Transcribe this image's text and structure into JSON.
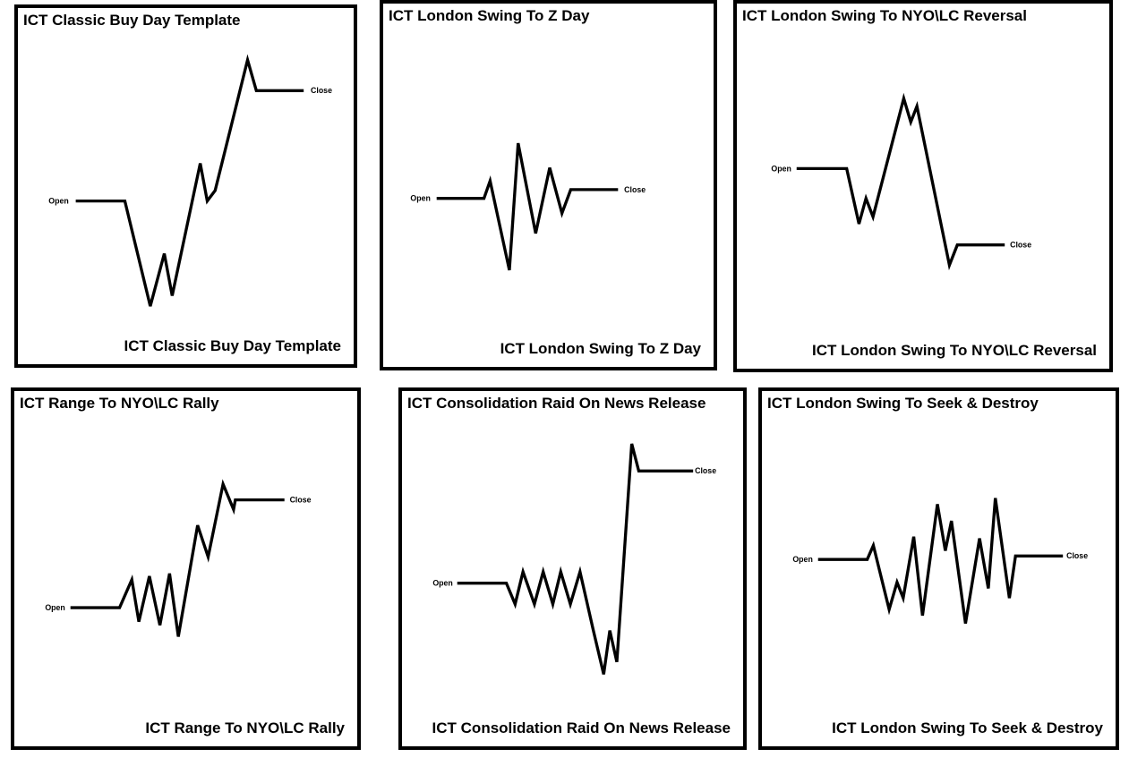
{
  "line_color": "#000000",
  "panels": [
    {
      "title": "ICT Classic Buy Day Template",
      "open_label": "Open",
      "close_label": "Close",
      "path": [
        [
          0,
          0
        ],
        [
          0.07,
          0
        ],
        [
          0.15,
          -0.32
        ],
        [
          0.19,
          -0.16
        ],
        [
          0.23,
          -0.29
        ],
        [
          0.33,
          0.11
        ],
        [
          0.36,
          0
        ],
        [
          0.39,
          0.03
        ],
        [
          0.45,
          0.42
        ],
        [
          0.49,
          0.33
        ],
        [
          0.63,
          0.33
        ]
      ]
    },
    {
      "title": "ICT London Swing To Z Day",
      "open_label": "Open",
      "close_label": "Close",
      "path": [
        [
          0,
          0
        ],
        [
          0.14,
          0
        ],
        [
          0.16,
          0.04
        ],
        [
          0.21,
          -0.19
        ],
        [
          0.24,
          0.15
        ],
        [
          0.3,
          -0.09
        ],
        [
          0.34,
          0.08
        ],
        [
          0.38,
          -0.04
        ],
        [
          0.4,
          0.02
        ],
        [
          0.54,
          0.02
        ]
      ]
    },
    {
      "title": "ICT London Swing To NYO\\LC Reversal",
      "open_label": "Open",
      "close_label": "Close",
      "path": [
        [
          0,
          0
        ],
        [
          0.14,
          0
        ],
        [
          0.16,
          -0.14
        ],
        [
          0.18,
          -0.07
        ],
        [
          0.19,
          -0.12
        ],
        [
          0.28,
          0.17
        ],
        [
          0.3,
          0.12
        ],
        [
          0.31,
          0.15
        ],
        [
          0.43,
          -0.23
        ],
        [
          0.45,
          -0.18
        ],
        [
          0.58,
          -0.18
        ]
      ]
    },
    {
      "title": "ICT Range To NYO\\LC Rally",
      "open_label": "Open",
      "close_label": "Close",
      "path": [
        [
          0,
          0
        ],
        [
          0.14,
          0
        ],
        [
          0.17,
          0.07
        ],
        [
          0.19,
          -0.04
        ],
        [
          0.22,
          0.08
        ],
        [
          0.25,
          -0.05
        ],
        [
          0.27,
          0.08
        ],
        [
          0.3,
          -0.08
        ],
        [
          0.35,
          0.21
        ],
        [
          0.39,
          0.12
        ],
        [
          0.43,
          0.28
        ],
        [
          0.46,
          0.23
        ],
        [
          0.6,
          0.23
        ]
      ]
    },
    {
      "title": "ICT Consolidation Raid On News Release",
      "open_label": "Open",
      "close_label": "Close",
      "path": [
        [
          0,
          0
        ],
        [
          0.14,
          0
        ],
        [
          0.17,
          -0.05
        ],
        [
          0.2,
          0.03
        ],
        [
          0.23,
          -0.05
        ],
        [
          0.25,
          0.03
        ],
        [
          0.28,
          -0.05
        ],
        [
          0.3,
          0.03
        ],
        [
          0.33,
          -0.05
        ],
        [
          0.35,
          0.03
        ],
        [
          0.38,
          -0.05
        ],
        [
          0.4,
          0.03
        ],
        [
          0.46,
          -0.23
        ],
        [
          0.48,
          -0.13
        ],
        [
          0.5,
          -0.19
        ],
        [
          0.54,
          0.39
        ],
        [
          0.57,
          0.31
        ],
        [
          0.7,
          0.31
        ]
      ]
    },
    {
      "title": "ICT London Swing To Seek & Destroy",
      "open_label": "Open",
      "close_label": "Close",
      "path": [
        [
          0,
          0
        ],
        [
          0.13,
          0
        ],
        [
          0.15,
          0.03
        ],
        [
          0.19,
          -0.14
        ],
        [
          0.21,
          -0.07
        ],
        [
          0.23,
          -0.11
        ],
        [
          0.26,
          0.06
        ],
        [
          0.29,
          -0.16
        ],
        [
          0.32,
          0.15
        ],
        [
          0.34,
          0.02
        ],
        [
          0.36,
          0.11
        ],
        [
          0.41,
          -0.18
        ],
        [
          0.45,
          0.05
        ],
        [
          0.48,
          -0.08
        ],
        [
          0.5,
          0.17
        ],
        [
          0.53,
          -0.11
        ],
        [
          0.55,
          0
        ],
        [
          0.67,
          0
        ]
      ]
    }
  ]
}
